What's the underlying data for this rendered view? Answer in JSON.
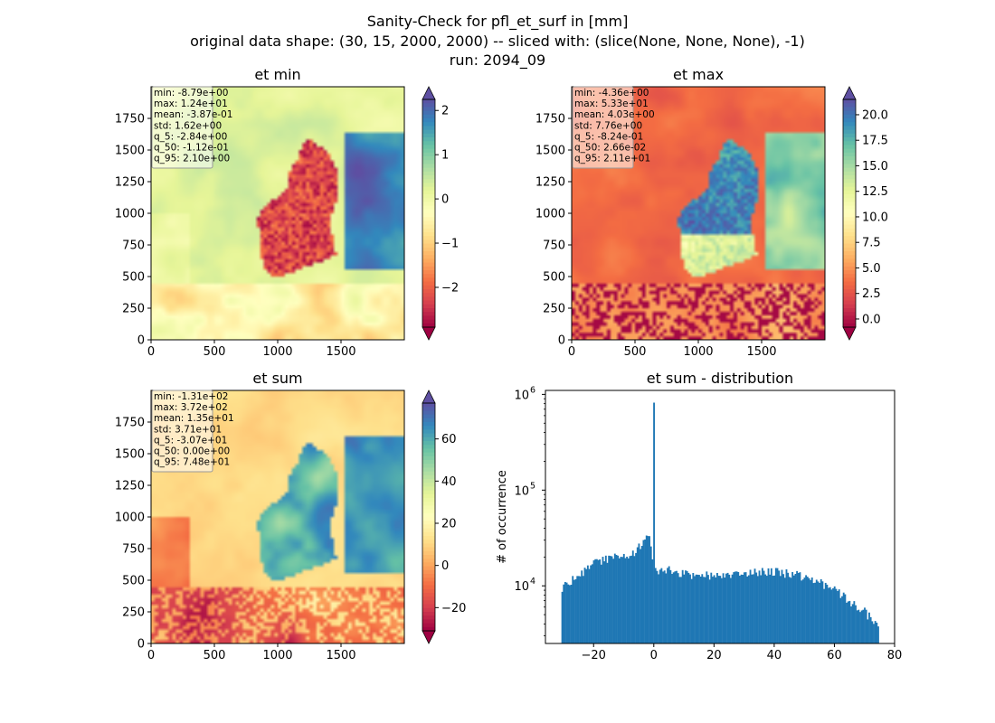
{
  "figure": {
    "title_lines": [
      "Sanity-Check for pfl_et_surf in [mm]",
      "original data shape: (30, 15, 2000, 2000) -- sliced with: (slice(None, None, None), -1)",
      "run: 2094_09"
    ]
  },
  "colormap": {
    "name": "Spectral",
    "stops": [
      "#9e0142",
      "#d53e4f",
      "#f46d43",
      "#fdae61",
      "#fee08b",
      "#ffffbf",
      "#e6f598",
      "#abdda4",
      "#66c2a5",
      "#3288bd",
      "#5e4fa2"
    ]
  },
  "chart_data": [
    {
      "type": "heatmap",
      "title": "et min",
      "x_ticks": [
        "0",
        "500",
        "1000",
        "1500"
      ],
      "y_ticks": [
        "0",
        "250",
        "500",
        "750",
        "1000",
        "1250",
        "1500",
        "1750"
      ],
      "colorbar": {
        "range": [
          -2.9,
          2.25
        ],
        "ticks": [
          -2,
          -1,
          0,
          1,
          2
        ],
        "tick_labels": [
          "−2",
          "−1",
          "0",
          "1",
          "2"
        ],
        "extend": "both"
      },
      "stats": [
        "min: -8.79e+00",
        "max: 1.24e+01",
        "mean: -3.87e-01",
        "std: 1.62e+00",
        "q_5: -2.84e+00",
        "q_50: -1.12e-01",
        "q_95: 2.10e+00"
      ]
    },
    {
      "type": "heatmap",
      "title": "et max",
      "x_ticks": [
        "0",
        "500",
        "1000",
        "1500"
      ],
      "y_ticks": [
        "0",
        "250",
        "500",
        "750",
        "1000",
        "1250",
        "1500",
        "1750"
      ],
      "colorbar": {
        "range": [
          -0.8,
          21.5
        ],
        "ticks": [
          0,
          2.5,
          5,
          7.5,
          10,
          12.5,
          15,
          17.5,
          20
        ],
        "tick_labels": [
          "0.0",
          "2.5",
          "5.0",
          "7.5",
          "10.0",
          "12.5",
          "15.0",
          "17.5",
          "20.0"
        ],
        "extend": "both"
      },
      "stats": [
        "min: -4.36e+00",
        "max: 5.33e+01",
        "mean: 4.03e+00",
        "std: 7.76e+00",
        "q_5: -8.24e-01",
        "q_50: 2.66e-02",
        "q_95: 2.11e+01"
      ]
    },
    {
      "type": "heatmap",
      "title": "et sum",
      "x_ticks": [
        "0",
        "500",
        "1000",
        "1500"
      ],
      "y_ticks": [
        "0",
        "250",
        "500",
        "750",
        "1000",
        "1250",
        "1500",
        "1750"
      ],
      "colorbar": {
        "range": [
          -31,
          77
        ],
        "ticks": [
          -20,
          0,
          20,
          40,
          60
        ],
        "tick_labels": [
          "−20",
          "0",
          "20",
          "40",
          "60"
        ],
        "extend": "both"
      },
      "stats": [
        "min: -1.31e+02",
        "max: 3.72e+02",
        "mean: 1.35e+01",
        "std: 3.71e+01",
        "q_5: -3.07e+01",
        "q_50: 0.00e+00",
        "q_95: 7.48e+01"
      ]
    },
    {
      "type": "bar",
      "title": "et sum - distribution",
      "ylabel": "# of occurrence",
      "y_scale": "log",
      "xlim": [
        -36,
        80
      ],
      "ylim": [
        2500,
        1100000
      ],
      "x_ticks": [
        -20,
        0,
        20,
        40,
        60,
        80
      ],
      "x_tick_labels": [
        "−20",
        "0",
        "20",
        "40",
        "60",
        "80"
      ],
      "y_ticks": [
        10000,
        100000,
        1000000
      ],
      "y_tick_labels": [
        "10^4",
        "10^5",
        "10^6"
      ],
      "bar_color": "#1f77b4",
      "bin_range": [
        -30.7,
        74.8
      ],
      "bin_width": 0.5,
      "envelope": [
        [
          -30.7,
          9000
        ],
        [
          -30,
          10200
        ],
        [
          -28,
          11000
        ],
        [
          -25,
          13000
        ],
        [
          -22,
          15500
        ],
        [
          -20,
          17000
        ],
        [
          -18,
          18500
        ],
        [
          -16,
          19000
        ],
        [
          -14,
          20000
        ],
        [
          -12,
          20500
        ],
        [
          -10,
          19500
        ],
        [
          -8,
          21000
        ],
        [
          -6,
          23000
        ],
        [
          -4,
          28000
        ],
        [
          -2,
          33000
        ],
        [
          -1,
          29000
        ],
        [
          0,
          16000
        ],
        [
          1,
          15000
        ],
        [
          3,
          14000
        ],
        [
          5,
          14500
        ],
        [
          8,
          13500
        ],
        [
          12,
          13000
        ],
        [
          16,
          13200
        ],
        [
          20,
          12500
        ],
        [
          25,
          12800
        ],
        [
          30,
          13500
        ],
        [
          35,
          13800
        ],
        [
          40,
          14000
        ],
        [
          45,
          13500
        ],
        [
          50,
          12500
        ],
        [
          55,
          10800
        ],
        [
          60,
          9200
        ],
        [
          65,
          7000
        ],
        [
          70,
          5400
        ],
        [
          73,
          4200
        ],
        [
          74.8,
          3600
        ]
      ],
      "spike": {
        "x": 0,
        "count": 820000
      }
    }
  ]
}
